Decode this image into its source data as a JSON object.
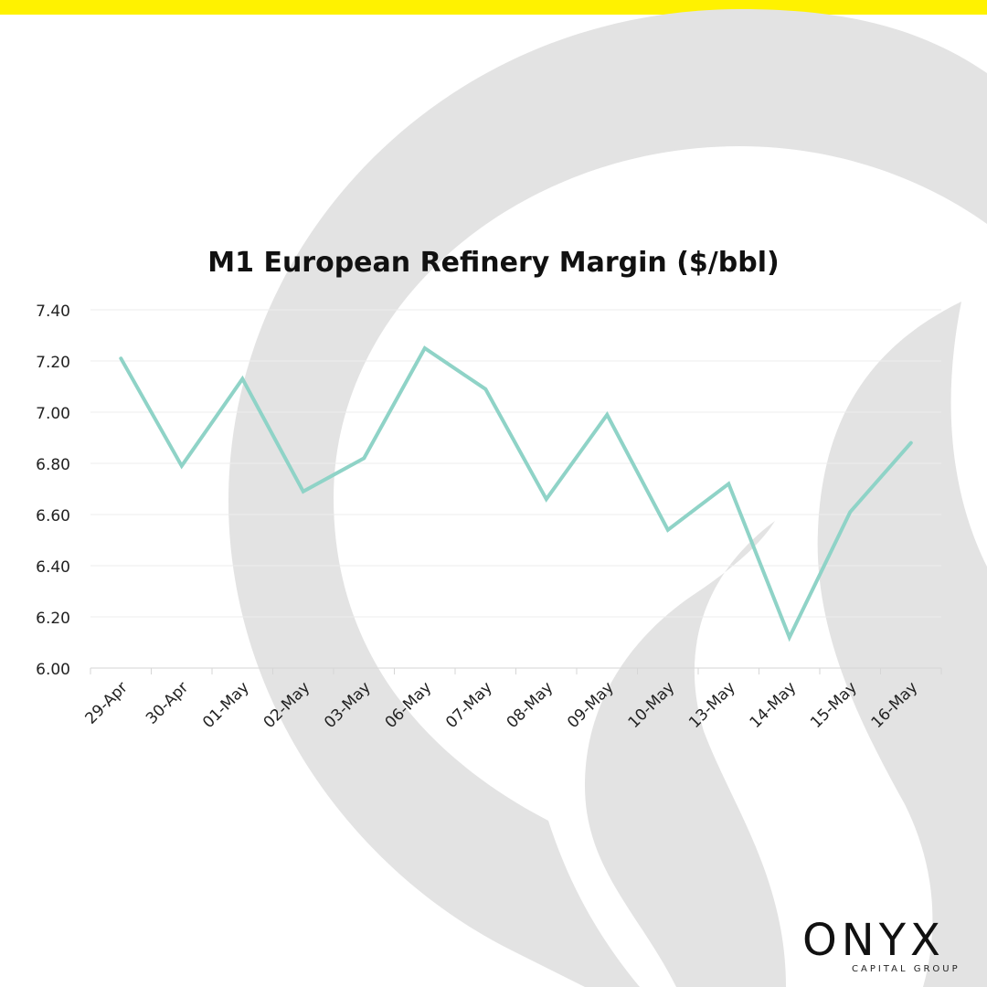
{
  "colors": {
    "accent_bar": "#fff200",
    "line": "#8fd3c7",
    "watermark": "#e3e3e3"
  },
  "brand": {
    "name": "ONYX",
    "tagline": "CAPITAL GROUP",
    "icon": "flame-icon"
  },
  "chart_data": {
    "type": "line",
    "title": "M1 European Refinery Margin ($/bbl)",
    "xlabel": "",
    "ylabel": "",
    "categories": [
      "29-Apr",
      "30-Apr",
      "01-May",
      "02-May",
      "03-May",
      "06-May",
      "07-May",
      "08-May",
      "09-May",
      "10-May",
      "13-May",
      "14-May",
      "15-May",
      "16-May"
    ],
    "series": [
      {
        "values": [
          7.21,
          6.79,
          7.13,
          6.69,
          6.82,
          7.25,
          7.09,
          6.66,
          6.99,
          6.54,
          6.72,
          6.12,
          6.61,
          6.88
        ]
      }
    ],
    "ylim": [
      6.0,
      7.4
    ],
    "yticks": [
      "6.00",
      "6.20",
      "6.40",
      "6.60",
      "6.80",
      "7.00",
      "7.20",
      "7.40"
    ],
    "grid": true,
    "legend": "none"
  }
}
